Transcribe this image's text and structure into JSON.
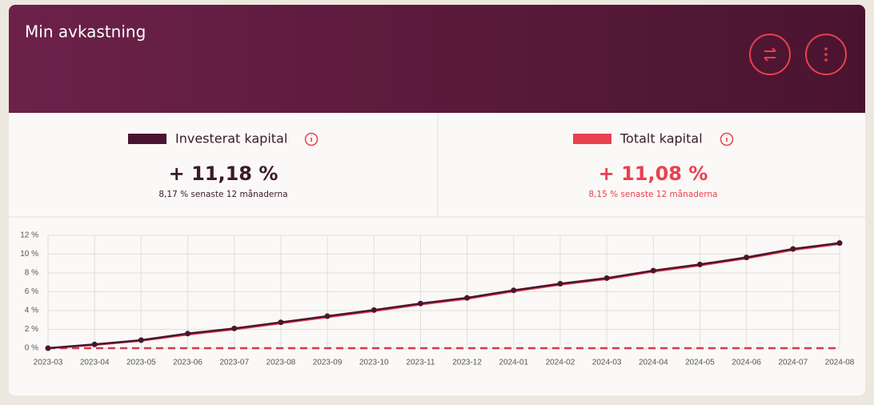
{
  "header": {
    "title": "Min avkastning"
  },
  "stats": [
    {
      "value": "+ 11,18 %",
      "sub": "8,17 % senaste 12 månaderna"
    },
    {
      "value": "+ 11,08 %",
      "sub": "8,15 % senaste 12 månaderna"
    }
  ],
  "chart_data": {
    "type": "line",
    "categories": [
      "2023-03",
      "2023-04",
      "2023-05",
      "2023-06",
      "2023-07",
      "2023-08",
      "2023-09",
      "2023-10",
      "2023-11",
      "2023-12",
      "2024-01",
      "2024-02",
      "2024-03",
      "2024-04",
      "2024-05",
      "2024-06",
      "2024-07",
      "2024-08"
    ],
    "series": [
      {
        "name": "Totalt kapital",
        "color": "#e8414f",
        "values": [
          0,
          0.35,
          0.8,
          1.45,
          2.0,
          2.65,
          3.3,
          3.95,
          4.65,
          5.25,
          6.05,
          6.75,
          7.35,
          8.15,
          8.8,
          9.55,
          10.45,
          11.08
        ]
      },
      {
        "name": "Investerat kapital",
        "color": "#4a1530",
        "values": [
          0,
          0.4,
          0.85,
          1.55,
          2.1,
          2.75,
          3.4,
          4.05,
          4.75,
          5.35,
          6.15,
          6.85,
          7.45,
          8.25,
          8.9,
          9.65,
          10.55,
          11.18
        ]
      }
    ],
    "ylim": [
      0,
      12
    ],
    "yticks": [
      {
        "value": 0,
        "label": "0 %"
      },
      {
        "value": 2,
        "label": "2 %"
      },
      {
        "value": 4,
        "label": "4 %"
      },
      {
        "value": 6,
        "label": "6 %"
      },
      {
        "value": 8,
        "label": "8 %"
      },
      {
        "value": 10,
        "label": "10 %"
      },
      {
        "value": 12,
        "label": "12 %"
      }
    ],
    "grid": true
  }
}
